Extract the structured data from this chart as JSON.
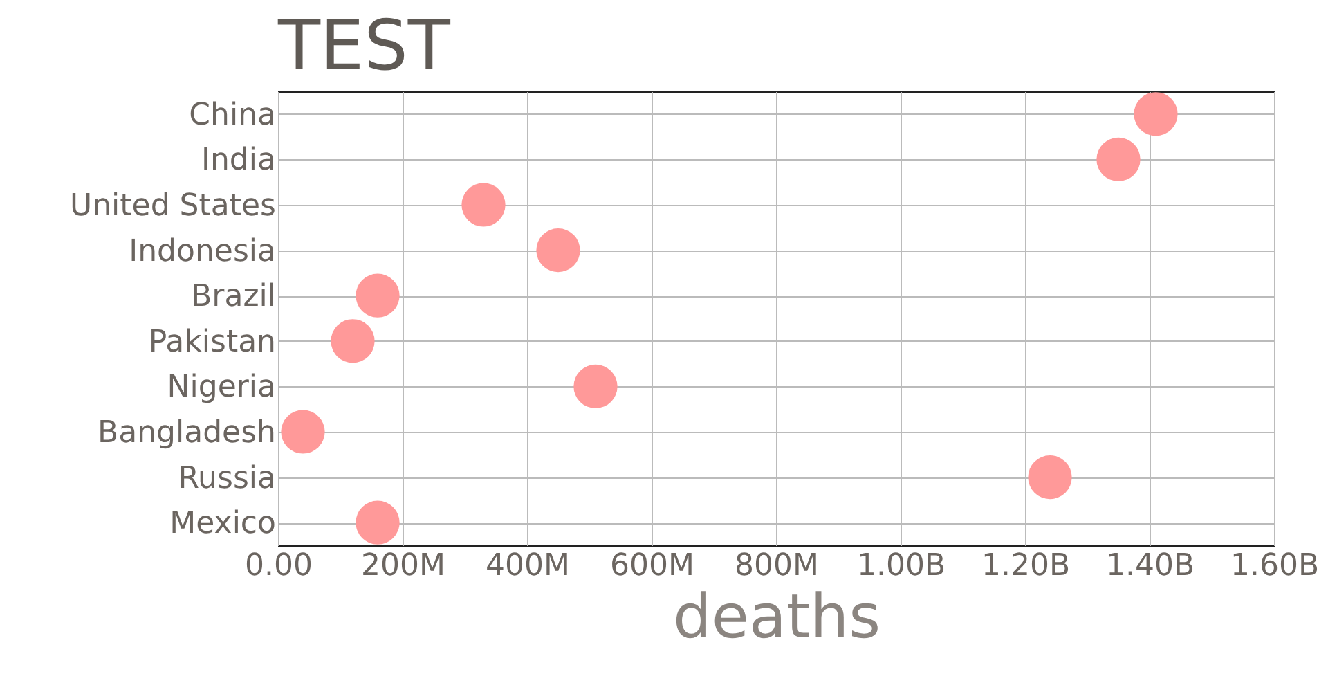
{
  "chart_data": {
    "type": "scatter",
    "title": "TEST",
    "xlabel": "deaths",
    "categories": [
      "China",
      "India",
      "United States",
      "Indonesia",
      "Brazil",
      "Pakistan",
      "Nigeria",
      "Bangladesh",
      "Russia",
      "Mexico"
    ],
    "values": [
      1410000000,
      1350000000,
      330000000,
      450000000,
      160000000,
      120000000,
      510000000,
      40000000,
      1240000000,
      160000000
    ],
    "color": "#ff9999",
    "marker": "circle",
    "grid": true,
    "orientation": "horizontal",
    "xlim": [
      0,
      1600000000
    ],
    "xticks": [
      {
        "value": 0,
        "label": "0.00"
      },
      {
        "value": 200000000,
        "label": "200M"
      },
      {
        "value": 400000000,
        "label": "400M"
      },
      {
        "value": 600000000,
        "label": "600M"
      },
      {
        "value": 800000000,
        "label": "800M"
      },
      {
        "value": 1000000000,
        "label": "1.00B"
      },
      {
        "value": 1200000000,
        "label": "1.20B"
      },
      {
        "value": 1400000000,
        "label": "1.40B"
      },
      {
        "value": 1600000000,
        "label": "1.60B"
      }
    ]
  }
}
